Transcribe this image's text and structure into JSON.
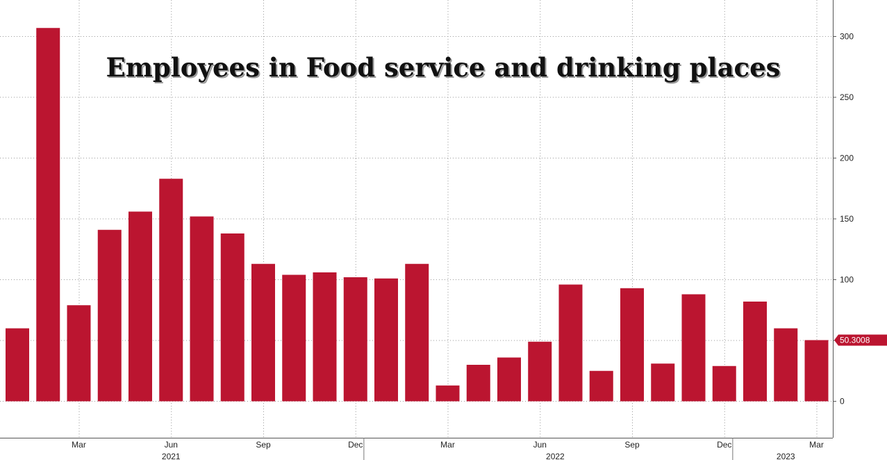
{
  "chart_data": {
    "type": "bar",
    "title": "Employees in Food service and drinking places",
    "xlabel": "",
    "ylabel": "",
    "ylim": [
      -30,
      330
    ],
    "yticks": [
      0,
      50,
      100,
      150,
      200,
      250,
      300
    ],
    "grid": true,
    "bar_color": "#bb1530",
    "categories": [
      "2021-01",
      "2021-02",
      "2021-03",
      "2021-04",
      "2021-05",
      "2021-06",
      "2021-07",
      "2021-08",
      "2021-09",
      "2021-10",
      "2021-11",
      "2021-12",
      "2022-01",
      "2022-02",
      "2022-03",
      "2022-04",
      "2022-05",
      "2022-06",
      "2022-07",
      "2022-08",
      "2022-09",
      "2022-10",
      "2022-11",
      "2022-12",
      "2023-01",
      "2023-02",
      "2023-03"
    ],
    "values": [
      60,
      307,
      79,
      141,
      156,
      183,
      152,
      138,
      113,
      104,
      106,
      102,
      101,
      113,
      13,
      30,
      36,
      49,
      96,
      25,
      93,
      31,
      88,
      29,
      82,
      60,
      50.3008
    ],
    "x_month_labels": [
      {
        "index": 2,
        "label": "Mar"
      },
      {
        "index": 5,
        "label": "Jun"
      },
      {
        "index": 8,
        "label": "Sep"
      },
      {
        "index": 11,
        "label": "Dec"
      },
      {
        "index": 14,
        "label": "Mar"
      },
      {
        "index": 17,
        "label": "Jun"
      },
      {
        "index": 20,
        "label": "Sep"
      },
      {
        "index": 23,
        "label": "Dec"
      },
      {
        "index": 26,
        "label": "Mar"
      }
    ],
    "x_year_labels": [
      {
        "label": "2021",
        "center_index": 5
      },
      {
        "label": "2022",
        "center_index": 17.5
      },
      {
        "label": "2023",
        "center_index": 25
      }
    ],
    "year_separators_after_index": [
      11,
      23
    ],
    "last_value_label": "50.3008"
  }
}
